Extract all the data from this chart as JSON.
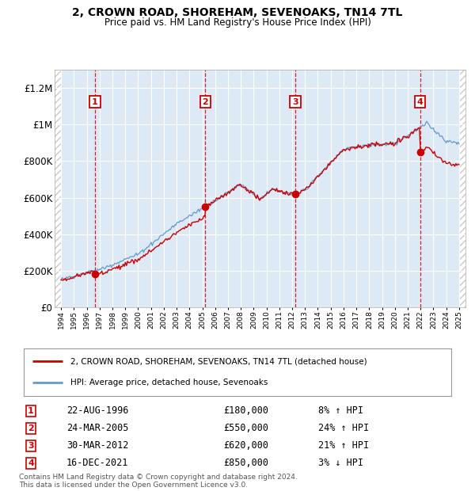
{
  "title": "2, CROWN ROAD, SHOREHAM, SEVENOAKS, TN14 7TL",
  "subtitle": "Price paid vs. HM Land Registry's House Price Index (HPI)",
  "ylim": [
    0,
    1300000
  ],
  "yticks": [
    0,
    200000,
    400000,
    600000,
    800000,
    1000000,
    1200000
  ],
  "ytick_labels": [
    "£0",
    "£200K",
    "£400K",
    "£600K",
    "£800K",
    "£1M",
    "£1.2M"
  ],
  "x_start_year": 1994,
  "x_end_year": 2025,
  "purchases": [
    {
      "label": "1",
      "year": 1996.64,
      "price": 180000,
      "date": "22-AUG-1996",
      "pct": "8%",
      "dir": "↑"
    },
    {
      "label": "2",
      "year": 2005.23,
      "price": 550000,
      "date": "24-MAR-2005",
      "pct": "24%",
      "dir": "↑"
    },
    {
      "label": "3",
      "year": 2012.24,
      "price": 620000,
      "date": "30-MAR-2012",
      "pct": "21%",
      "dir": "↑"
    },
    {
      "label": "4",
      "year": 2021.96,
      "price": 850000,
      "date": "16-DEC-2021",
      "pct": "3%",
      "dir": "↓"
    }
  ],
  "legend_property_label": "2, CROWN ROAD, SHOREHAM, SEVENOAKS, TN14 7TL (detached house)",
  "legend_hpi_label": "HPI: Average price, detached house, Sevenoaks",
  "footer": "Contains HM Land Registry data © Crown copyright and database right 2024.\nThis data is licensed under the Open Government Licence v3.0.",
  "property_line_color": "#cc0000",
  "hpi_line_color": "#6699cc",
  "plot_bg_color": "#dde9f5",
  "hatch_color": "#c8c8c8"
}
